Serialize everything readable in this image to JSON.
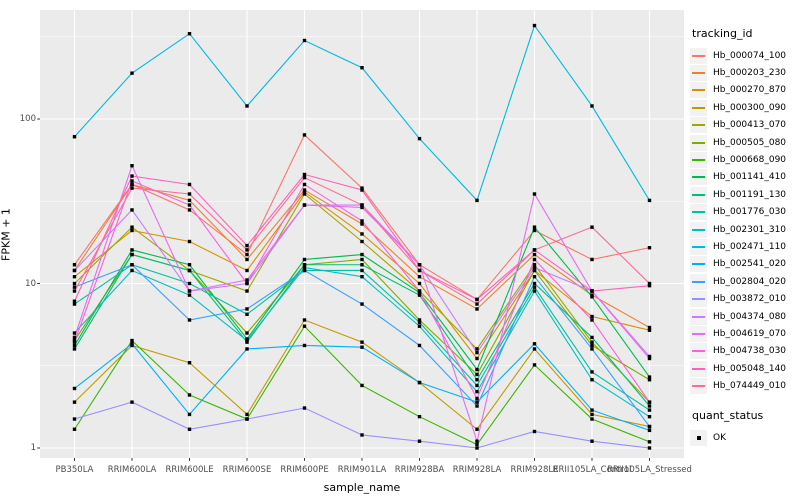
{
  "chart_data": {
    "type": "line",
    "title": "",
    "xlabel": "sample_name",
    "ylabel": "FPKM + 1",
    "y_scale": "log10",
    "y_breaks": [
      1,
      10,
      100
    ],
    "y_minor_breaks": [
      3.1623,
      31.623,
      316.23
    ],
    "ylim": [
      0.87,
      465
    ],
    "grid": "on",
    "legend_position": "right",
    "legend_title": "tracking_id",
    "point_legend": {
      "title": "quant_status",
      "items": [
        "OK"
      ]
    },
    "point_shape": "filled-square",
    "point_color": "#000000",
    "panel_bg": "#EBEBEB",
    "grid_color": "#FFFFFF",
    "axis_text_color": "#4D4D4D",
    "categories": [
      "PB350LA",
      "RRIM600LA",
      "RRIM600LE",
      "RRIM600SE",
      "RRIM600PE",
      "RRIM901LA",
      "RRIM928BA",
      "RRIM928LA",
      "RRIM928LE",
      "RRII105LA_Control",
      "RRII105LA_Stressed"
    ],
    "series": [
      {
        "name": "Hb_000074_100",
        "color": "#F8766D",
        "values": [
          13,
          40,
          28,
          15,
          80,
          38,
          13,
          8,
          21,
          14,
          16.5
        ]
      },
      {
        "name": "Hb_000203_230",
        "color": "#EA8331",
        "values": [
          12,
          40,
          32,
          14,
          37,
          23,
          11,
          7,
          15,
          8.5,
          5.4
        ]
      },
      {
        "name": "Hb_000270_870",
        "color": "#D89000",
        "values": [
          11,
          21,
          18,
          12,
          36,
          20,
          10,
          3.5,
          12,
          6.3,
          5.2
        ]
      },
      {
        "name": "Hb_000300_090",
        "color": "#C09B00",
        "values": [
          1.9,
          4.2,
          3.3,
          1.6,
          6,
          4.4,
          2.5,
          1.3,
          4,
          1.6,
          1.35
        ]
      },
      {
        "name": "Hb_000413_070",
        "color": "#A3A500",
        "values": [
          10,
          22,
          12,
          9,
          35,
          18,
          9,
          4,
          13,
          4.4,
          1.9
        ]
      },
      {
        "name": "Hb_000505_080",
        "color": "#7CAE00",
        "values": [
          4.5,
          15,
          12,
          5,
          13,
          14,
          6,
          2.8,
          12,
          4.2,
          2.6
        ]
      },
      {
        "name": "Hb_000668_090",
        "color": "#39B600",
        "values": [
          1.3,
          4.5,
          2.1,
          1.5,
          5.5,
          2.4,
          1.55,
          1.05,
          3.2,
          1.5,
          1.09
        ]
      },
      {
        "name": "Hb_001141_410",
        "color": "#00BB4E",
        "values": [
          4.2,
          16,
          13,
          4.6,
          14,
          15,
          8.8,
          3,
          22,
          8.3,
          2.7
        ]
      },
      {
        "name": "Hb_001191_130",
        "color": "#00BF7D",
        "values": [
          4,
          15,
          12,
          4.4,
          13,
          13,
          8.5,
          2.6,
          10,
          4.7,
          1.8
        ]
      },
      {
        "name": "Hb_001776_030",
        "color": "#00C1A3",
        "values": [
          7.5,
          13,
          10,
          6.5,
          12,
          12,
          5.8,
          2.4,
          9.5,
          2.9,
          1.7
        ]
      },
      {
        "name": "Hb_002301_310",
        "color": "#00BFC4",
        "values": [
          5,
          12,
          8.5,
          4.5,
          12.5,
          11,
          5.5,
          2.2,
          9,
          2.6,
          1.55
        ]
      },
      {
        "name": "Hb_002471_110",
        "color": "#00BAE0",
        "values": [
          78,
          190,
          330,
          120,
          300,
          205,
          76,
          32,
          370,
          120,
          32
        ]
      },
      {
        "name": "Hb_002541_020",
        "color": "#00B0F6",
        "values": [
          2.3,
          4.3,
          1.6,
          4,
          4.2,
          4.1,
          2.5,
          1.9,
          4.3,
          1.7,
          1.28
        ]
      },
      {
        "name": "Hb_002804_020",
        "color": "#35A2FF",
        "values": [
          9.5,
          13,
          6,
          7,
          12,
          7.5,
          4.2,
          1.8,
          11,
          4,
          1.35
        ]
      },
      {
        "name": "Hb_003872_010",
        "color": "#9590FF",
        "values": [
          1.5,
          1.9,
          1.3,
          1.5,
          1.75,
          1.2,
          1.1,
          1,
          1.26,
          1.1,
          1
        ]
      },
      {
        "name": "Hb_004374_080",
        "color": "#C77CFF",
        "values": [
          12,
          28,
          9,
          10,
          30,
          30,
          13,
          3.8,
          12.5,
          9,
          3.5
        ]
      },
      {
        "name": "Hb_004619_070",
        "color": "#E76BF3",
        "values": [
          4.7,
          52,
          9,
          10.5,
          30,
          29,
          13,
          1.1,
          35,
          9,
          3.6
        ]
      },
      {
        "name": "Hb_004738_030",
        "color": "#FA62DB",
        "values": [
          4.4,
          42,
          30,
          10,
          40,
          24,
          9,
          2,
          14,
          6,
          1.9
        ]
      },
      {
        "name": "Hb_005048_140",
        "color": "#FF62BC",
        "values": [
          7.8,
          45,
          40,
          17,
          46,
          37,
          12,
          8,
          16,
          9,
          9.7
        ]
      },
      {
        "name": "Hb_074449_010",
        "color": "#FF6A98",
        "values": [
          9,
          38,
          35,
          16,
          44,
          30,
          12,
          7.5,
          16,
          22,
          10
        ]
      }
    ]
  }
}
